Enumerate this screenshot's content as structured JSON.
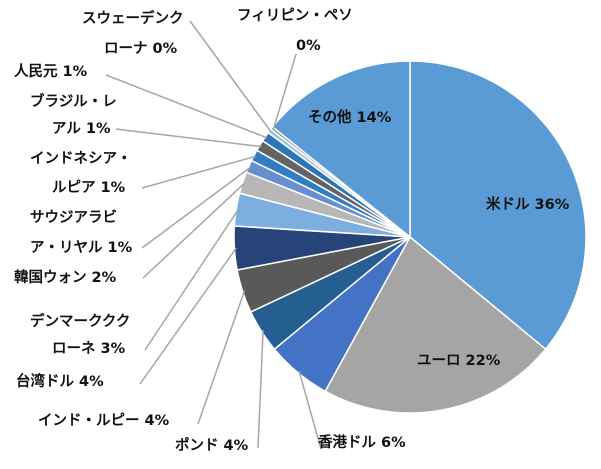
{
  "chart_data": {
    "type": "pie",
    "title": "",
    "slices": [
      {
        "label": "米ドル",
        "value_label": "36%",
        "value": 36,
        "color": "#5b9bd5"
      },
      {
        "label": "ユーロ",
        "value_label": "22%",
        "value": 22,
        "color": "#a5a5a5"
      },
      {
        "label": "香港ドル",
        "value_label": "6%",
        "value": 6,
        "color": "#4472c4"
      },
      {
        "label": "ポンド",
        "value_label": "4%",
        "value": 4,
        "color": "#255e91"
      },
      {
        "label": "インド・ルピー",
        "value_label": "4%",
        "value": 4,
        "color": "#595959"
      },
      {
        "label": "台湾ドル",
        "value_label": "4%",
        "value": 4,
        "color": "#264478"
      },
      {
        "label": "デンマーククローネ",
        "value_label": "3%",
        "value": 3,
        "color": "#7cafdd"
      },
      {
        "label": "韓国ウォン",
        "value_label": "2%",
        "value": 2,
        "color": "#b7b7b7"
      },
      {
        "label": "サウジアラビア・リヤル",
        "value_label": "1%",
        "value": 1.15,
        "color": "#698ed0"
      },
      {
        "label": "インドネシア・ルピア",
        "value_label": "1%",
        "value": 1.05,
        "color": "#327dc2"
      },
      {
        "label": "ブラジル・レアル",
        "value_label": "1%",
        "value": 1.0,
        "color": "#636363"
      },
      {
        "label": "人民元",
        "value_label": "1%",
        "value": 0.9,
        "color": "#2e75b6"
      },
      {
        "label": "スウェーデンクローナ",
        "value_label": "0%",
        "value": 0.4,
        "color": "#9dc3e6"
      },
      {
        "label": "フィリピン・ペソ",
        "value_label": "0%",
        "value": 0.25,
        "color": "#7f7f7f"
      },
      {
        "label": "その他",
        "value_label": "14%",
        "value": 14.25,
        "color": "#5b9bd5"
      }
    ],
    "legend": "none"
  }
}
